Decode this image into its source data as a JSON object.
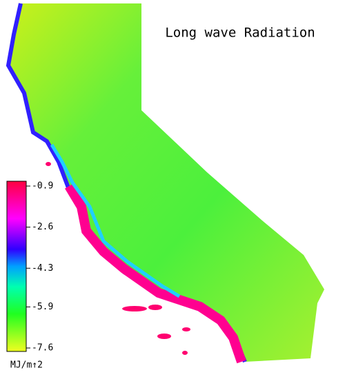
{
  "title": "Long wave Radiation",
  "colorbar": {
    "ticks": [
      -0.9,
      -2.6,
      -4.3,
      -5.9,
      -7.6
    ],
    "unit": "MJ/m↑2"
  }
}
